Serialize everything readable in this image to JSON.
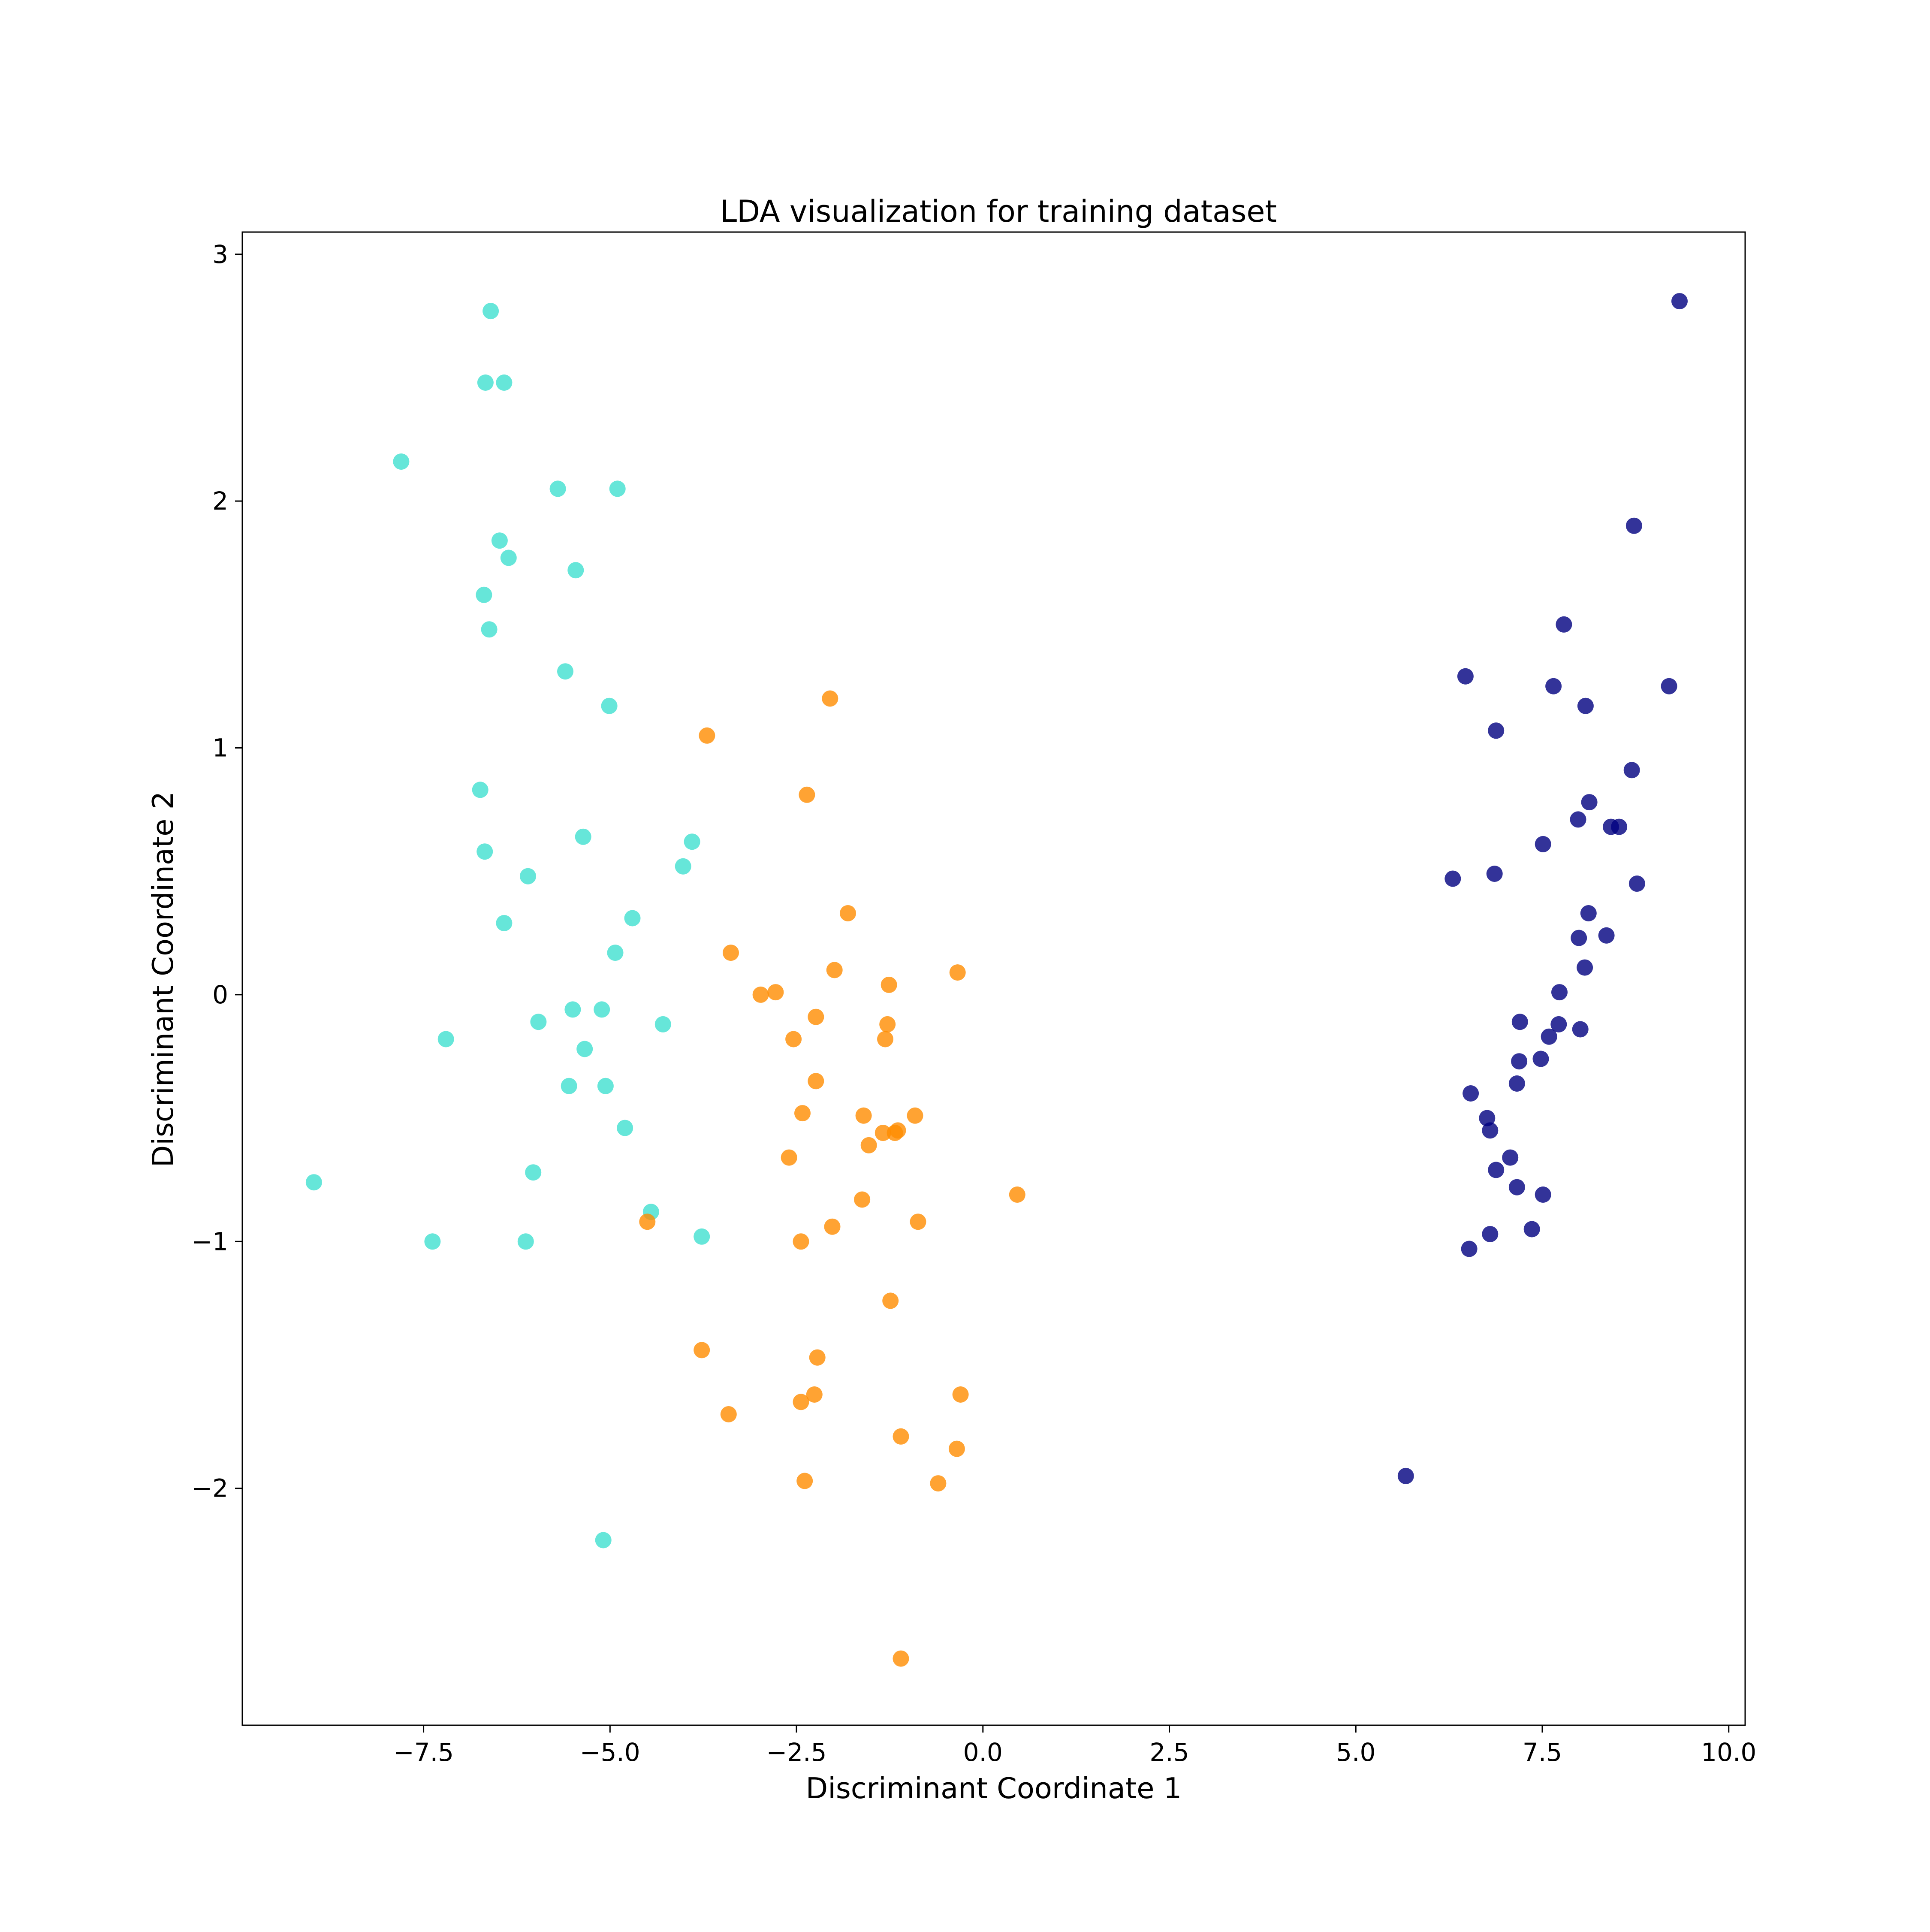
{
  "chart_data": {
    "type": "scatter",
    "title": "LDA visualization for training dataset",
    "xlabel": "Discriminant Coordinate 1",
    "ylabel": "Discriminant Coordinate 2",
    "xlim": [
      -9.93,
      10.22
    ],
    "ylim": [
      -2.96,
      3.09
    ],
    "xticks": [
      -7.5,
      -5.0,
      -2.5,
      0.0,
      2.5,
      5.0,
      7.5,
      10.0
    ],
    "xtick_labels": [
      "−7.5",
      "−5.0",
      "−2.5",
      "0.0",
      "2.5",
      "5.0",
      "7.5",
      "10.0"
    ],
    "yticks": [
      3,
      2,
      1,
      0,
      -1,
      -2
    ],
    "ytick_labels": [
      "3",
      "2",
      "1",
      "0",
      "−1",
      "−2"
    ],
    "grid": false,
    "legend": false,
    "series": [
      {
        "color": "#40e0d0",
        "opacity": 0.8,
        "points": [
          [
            -6.6,
            2.77
          ],
          [
            -6.67,
            2.48
          ],
          [
            -6.42,
            2.48
          ],
          [
            -7.8,
            2.16
          ],
          [
            -5.7,
            2.05
          ],
          [
            -4.9,
            2.05
          ],
          [
            -6.48,
            1.84
          ],
          [
            -6.36,
            1.77
          ],
          [
            -5.46,
            1.72
          ],
          [
            -6.69,
            1.62
          ],
          [
            -6.62,
            1.48
          ],
          [
            -5.6,
            1.31
          ],
          [
            -5.01,
            1.17
          ],
          [
            -6.74,
            0.83
          ],
          [
            -6.68,
            0.58
          ],
          [
            -5.36,
            0.64
          ],
          [
            -3.9,
            0.62
          ],
          [
            -4.02,
            0.52
          ],
          [
            -6.1,
            0.48
          ],
          [
            -6.42,
            0.29
          ],
          [
            -4.7,
            0.31
          ],
          [
            -4.93,
            0.17
          ],
          [
            -5.5,
            -0.06
          ],
          [
            -5.11,
            -0.06
          ],
          [
            -5.96,
            -0.11
          ],
          [
            -4.29,
            -0.12
          ],
          [
            -7.2,
            -0.18
          ],
          [
            -5.34,
            -0.22
          ],
          [
            -5.55,
            -0.37
          ],
          [
            -5.06,
            -0.37
          ],
          [
            -4.8,
            -0.54
          ],
          [
            -6.03,
            -0.72
          ],
          [
            -8.97,
            -0.76
          ],
          [
            -4.45,
            -0.88
          ],
          [
            -3.77,
            -0.98
          ],
          [
            -7.38,
            -1.0
          ],
          [
            -6.13,
            -1.0
          ],
          [
            -5.09,
            -2.21
          ]
        ]
      },
      {
        "color": "#ff8c00",
        "opacity": 0.8,
        "points": [
          [
            -2.05,
            1.2
          ],
          [
            -3.7,
            1.05
          ],
          [
            -2.36,
            0.81
          ],
          [
            -1.81,
            0.33
          ],
          [
            -3.38,
            0.17
          ],
          [
            -1.99,
            0.1
          ],
          [
            -0.34,
            0.09
          ],
          [
            -2.78,
            0.01
          ],
          [
            -2.98,
            0.0
          ],
          [
            -1.26,
            0.04
          ],
          [
            -2.24,
            -0.09
          ],
          [
            -1.28,
            -0.12
          ],
          [
            -2.54,
            -0.18
          ],
          [
            -1.31,
            -0.18
          ],
          [
            -2.24,
            -0.35
          ],
          [
            -2.42,
            -0.48
          ],
          [
            -1.6,
            -0.49
          ],
          [
            -0.91,
            -0.49
          ],
          [
            -1.34,
            -0.56
          ],
          [
            -1.18,
            -0.56
          ],
          [
            -1.14,
            -0.55
          ],
          [
            -1.53,
            -0.61
          ],
          [
            -2.6,
            -0.66
          ],
          [
            -1.62,
            -0.83
          ],
          [
            0.46,
            -0.81
          ],
          [
            -4.5,
            -0.92
          ],
          [
            -2.02,
            -0.94
          ],
          [
            -0.87,
            -0.92
          ],
          [
            -2.44,
            -1.0
          ],
          [
            -1.24,
            -1.24
          ],
          [
            -3.77,
            -1.44
          ],
          [
            -2.22,
            -1.47
          ],
          [
            -2.44,
            -1.65
          ],
          [
            -2.26,
            -1.62
          ],
          [
            -0.3,
            -1.62
          ],
          [
            -3.41,
            -1.7
          ],
          [
            -1.1,
            -1.79
          ],
          [
            -0.35,
            -1.84
          ],
          [
            -2.39,
            -1.97
          ],
          [
            -0.6,
            -1.98
          ],
          [
            -1.1,
            -2.69
          ]
        ]
      },
      {
        "color": "#000080",
        "opacity": 0.8,
        "points": [
          [
            9.34,
            2.81
          ],
          [
            8.73,
            1.9
          ],
          [
            7.79,
            1.5
          ],
          [
            6.47,
            1.29
          ],
          [
            7.65,
            1.25
          ],
          [
            9.2,
            1.25
          ],
          [
            8.08,
            1.17
          ],
          [
            6.88,
            1.07
          ],
          [
            8.7,
            0.91
          ],
          [
            8.13,
            0.78
          ],
          [
            7.98,
            0.71
          ],
          [
            8.42,
            0.68
          ],
          [
            8.53,
            0.68
          ],
          [
            7.51,
            0.61
          ],
          [
            6.3,
            0.47
          ],
          [
            6.86,
            0.49
          ],
          [
            8.77,
            0.45
          ],
          [
            8.12,
            0.33
          ],
          [
            7.99,
            0.23
          ],
          [
            8.36,
            0.24
          ],
          [
            8.07,
            0.11
          ],
          [
            7.73,
            0.01
          ],
          [
            7.2,
            -0.11
          ],
          [
            7.72,
            -0.12
          ],
          [
            8.01,
            -0.14
          ],
          [
            7.59,
            -0.17
          ],
          [
            7.19,
            -0.27
          ],
          [
            7.48,
            -0.26
          ],
          [
            7.16,
            -0.36
          ],
          [
            6.54,
            -0.4
          ],
          [
            6.76,
            -0.5
          ],
          [
            6.8,
            -0.55
          ],
          [
            7.07,
            -0.66
          ],
          [
            6.88,
            -0.71
          ],
          [
            7.16,
            -0.78
          ],
          [
            7.51,
            -0.81
          ],
          [
            6.8,
            -0.97
          ],
          [
            7.36,
            -0.95
          ],
          [
            6.52,
            -1.03
          ],
          [
            5.67,
            -1.95
          ]
        ]
      }
    ]
  }
}
